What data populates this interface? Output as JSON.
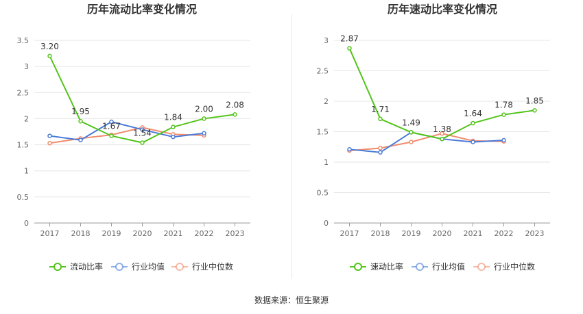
{
  "chart_data": [
    {
      "type": "line",
      "title": "历年流动比率变化情况",
      "categories": [
        "2017",
        "2018",
        "2019",
        "2020",
        "2021",
        "2022",
        "2023"
      ],
      "ylim": [
        0,
        3.5
      ],
      "yticks": [
        "0",
        "0.5",
        "1",
        "1.5",
        "2",
        "2.5",
        "3",
        "3.5"
      ],
      "series": [
        {
          "name": "流动比率",
          "color": "#52c41a",
          "values": [
            3.2,
            1.95,
            1.67,
            1.54,
            1.84,
            2.0,
            2.08
          ],
          "labels": [
            "3.20",
            "1.95",
            "1.67",
            "1.54",
            "1.84",
            "2.00",
            "2.08"
          ]
        },
        {
          "name": "行业均值",
          "color": "#4a7bd9",
          "values": [
            1.67,
            1.59,
            1.94,
            1.79,
            1.65,
            1.72,
            null
          ]
        },
        {
          "name": "行业中位数",
          "color": "#f08c6c",
          "values": [
            1.53,
            1.62,
            1.69,
            1.83,
            1.7,
            1.68,
            null
          ]
        }
      ]
    },
    {
      "type": "line",
      "title": "历年速动比率变化情况",
      "categories": [
        "2017",
        "2018",
        "2019",
        "2020",
        "2021",
        "2022",
        "2023"
      ],
      "ylim": [
        0,
        3
      ],
      "yticks": [
        "0",
        "0.5",
        "1",
        "1.5",
        "2",
        "2.5",
        "3"
      ],
      "series": [
        {
          "name": "速动比率",
          "color": "#52c41a",
          "values": [
            2.87,
            1.71,
            1.49,
            1.38,
            1.64,
            1.78,
            1.85
          ],
          "labels": [
            "2.87",
            "1.71",
            "1.49",
            "1.38",
            "1.64",
            "1.78",
            "1.85"
          ]
        },
        {
          "name": "行业均值",
          "color": "#4a7bd9",
          "values": [
            1.21,
            1.16,
            1.49,
            1.38,
            1.33,
            1.36,
            null
          ]
        },
        {
          "name": "行业中位数",
          "color": "#f08c6c",
          "values": [
            1.19,
            1.23,
            1.33,
            1.47,
            1.35,
            1.34,
            null
          ]
        }
      ]
    }
  ],
  "footer": {
    "source": "数据来源：恒生聚源"
  }
}
